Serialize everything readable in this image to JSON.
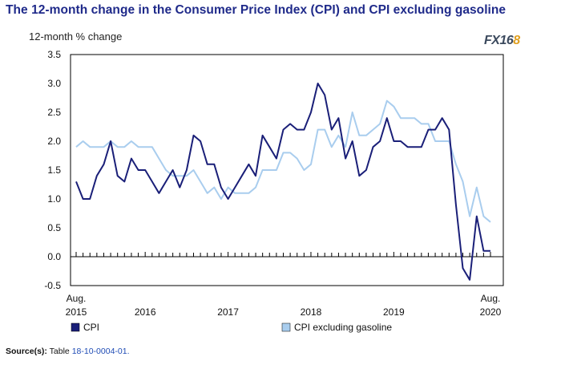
{
  "title": "The 12-month change in the Consumer Price Index (CPI) and CPI excluding gasoline",
  "logo": {
    "prefix": "FX16",
    "accent": "8"
  },
  "source": {
    "label": "Source(s):",
    "text": "Table",
    "table_ref": "18-10-0004-01."
  },
  "colors": {
    "cpi": "#1a1f78",
    "cpi_ex_gas": "#a9cdee",
    "axis": "#000000",
    "title": "#1f2a8a"
  },
  "chart_data": {
    "type": "line",
    "ylabel": "12-month % change",
    "ylim": [
      -0.5,
      3.5
    ],
    "yticks": [
      "3.5",
      "3.0",
      "2.5",
      "2.0",
      "1.5",
      "1.0",
      "0.5",
      "0.0",
      "-0.5"
    ],
    "x_start": "Aug. 2015",
    "x_end": "Aug. 2020",
    "x_labels": [
      {
        "line1": "Aug.",
        "line2": "2015",
        "index": 0
      },
      {
        "line1": "",
        "line2": "2016",
        "index": 10
      },
      {
        "line1": "",
        "line2": "2017",
        "index": 22
      },
      {
        "line1": "",
        "line2": "2018",
        "index": 34
      },
      {
        "line1": "",
        "line2": "2019",
        "index": 46
      },
      {
        "line1": "Aug.",
        "line2": "2020",
        "index": 60
      }
    ],
    "series": [
      {
        "name": "CPI",
        "color": "#1a1f78",
        "values": [
          1.3,
          1.0,
          1.0,
          1.4,
          1.6,
          2.0,
          1.4,
          1.3,
          1.7,
          1.5,
          1.5,
          1.3,
          1.1,
          1.3,
          1.5,
          1.2,
          1.5,
          2.1,
          2.0,
          1.6,
          1.6,
          1.2,
          1.0,
          1.2,
          1.4,
          1.6,
          1.4,
          2.1,
          1.9,
          1.7,
          2.2,
          2.3,
          2.2,
          2.2,
          2.5,
          3.0,
          2.8,
          2.2,
          2.4,
          1.7,
          2.0,
          1.4,
          1.5,
          1.9,
          2.0,
          2.4,
          2.0,
          2.0,
          1.9,
          1.9,
          1.9,
          2.2,
          2.2,
          2.4,
          2.2,
          0.9,
          -0.2,
          -0.4,
          0.7,
          0.1,
          0.1
        ]
      },
      {
        "name": "CPI excluding gasoline",
        "color": "#a9cdee",
        "values": [
          1.9,
          2.0,
          1.9,
          1.9,
          1.9,
          2.0,
          1.9,
          1.9,
          2.0,
          1.9,
          1.9,
          1.9,
          1.7,
          1.5,
          1.4,
          1.4,
          1.4,
          1.5,
          1.3,
          1.1,
          1.2,
          1.0,
          1.2,
          1.1,
          1.1,
          1.1,
          1.2,
          1.5,
          1.5,
          1.5,
          1.8,
          1.8,
          1.7,
          1.5,
          1.6,
          2.2,
          2.2,
          1.9,
          2.1,
          1.9,
          2.5,
          2.1,
          2.1,
          2.2,
          2.3,
          2.7,
          2.6,
          2.4,
          2.4,
          2.4,
          2.3,
          2.3,
          2.0,
          2.0,
          2.0,
          1.6,
          1.3,
          0.7,
          1.2,
          0.7,
          0.6
        ]
      }
    ],
    "legend": {
      "position": "bottom"
    }
  }
}
